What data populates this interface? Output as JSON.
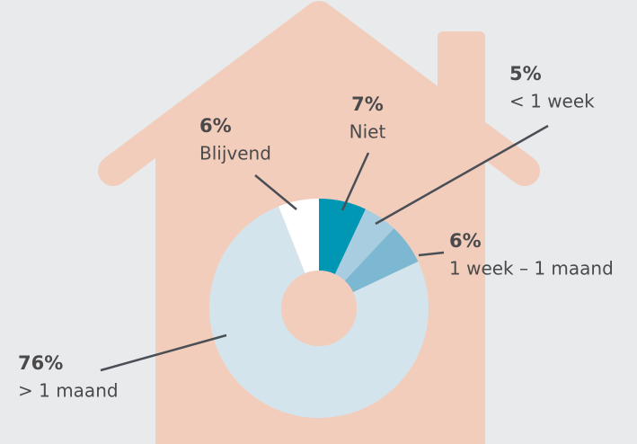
{
  "chart_data": {
    "type": "donut",
    "categories": [
      "Niet",
      "< 1 week",
      "1 week – 1 maand",
      "> 1 maand",
      "Blijvend"
    ],
    "values": [
      7,
      5,
      6,
      76,
      6
    ],
    "value_labels": [
      "7%",
      "5%",
      "6%",
      "76%",
      "6%"
    ],
    "colors": [
      "#0097b5",
      "#a8cde0",
      "#7cb8d1",
      "#d3e4ec",
      "#ffffff"
    ]
  }
}
